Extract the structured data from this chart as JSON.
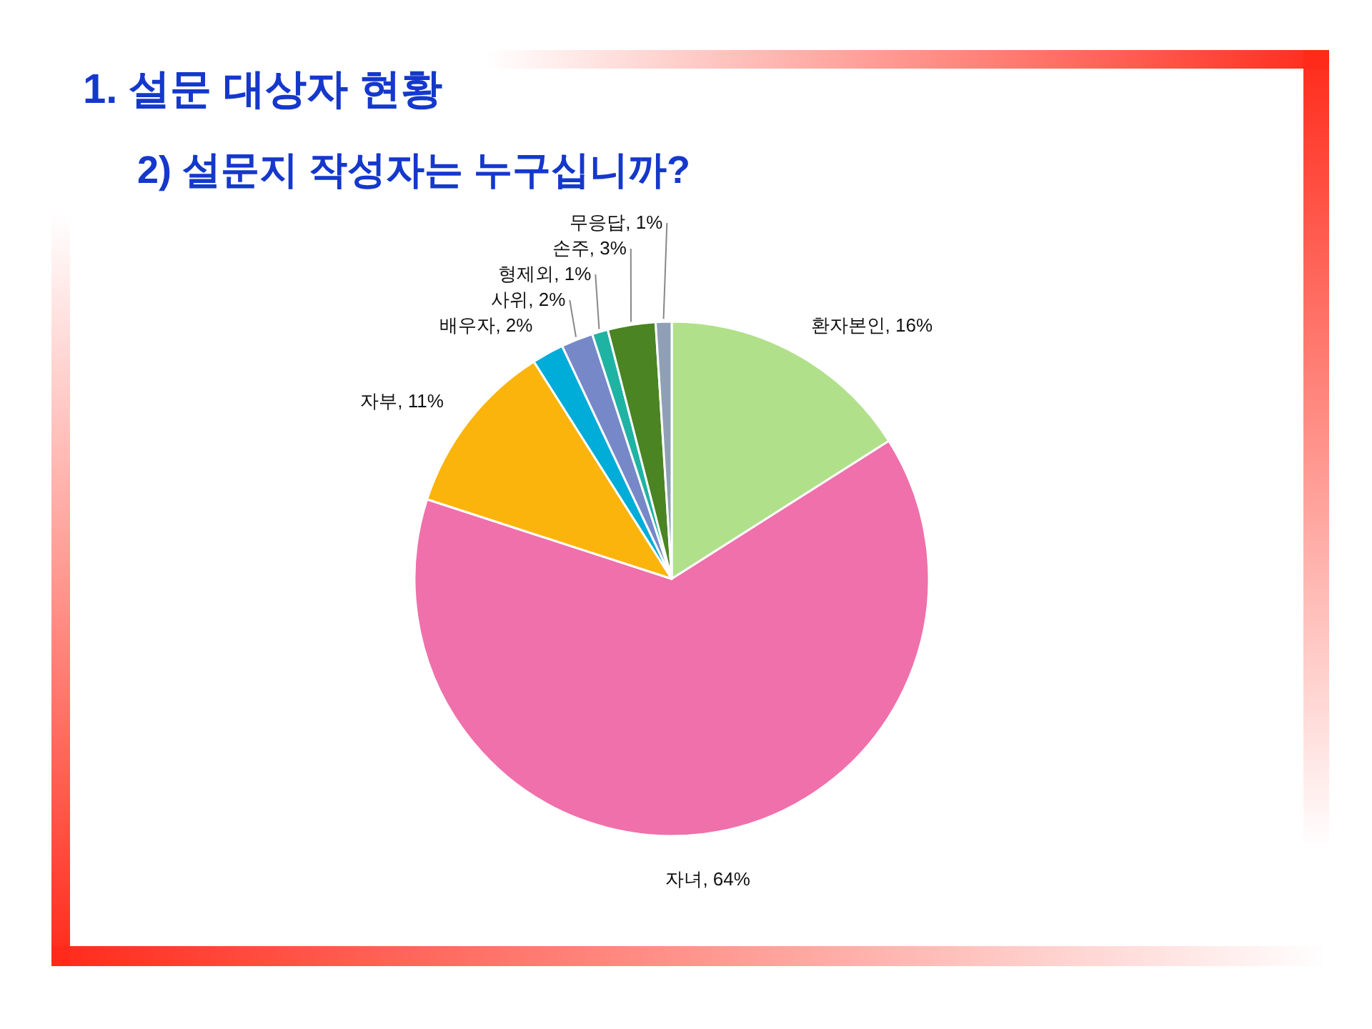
{
  "chart_data": {
    "type": "pie",
    "title": "1. 설문 대상자 현황",
    "subtitle": "2) 설문지 작성자는 누구십니까?",
    "categories": [
      "환자본인",
      "자녀",
      "자부",
      "배우자",
      "사위",
      "형제외",
      "손주",
      "무응답"
    ],
    "values": [
      16,
      64,
      11,
      2,
      2,
      1,
      3,
      1
    ],
    "colors": [
      "#b1e08a",
      "#ef70aa",
      "#fbb40b",
      "#00acd8",
      "#7788c8",
      "#1fb3a3",
      "#4a8423",
      "#8fa0b6"
    ],
    "value_labels": [
      "16%",
      "64%",
      "11%",
      "2%",
      "2%",
      "1%",
      "3%",
      "1%"
    ]
  }
}
